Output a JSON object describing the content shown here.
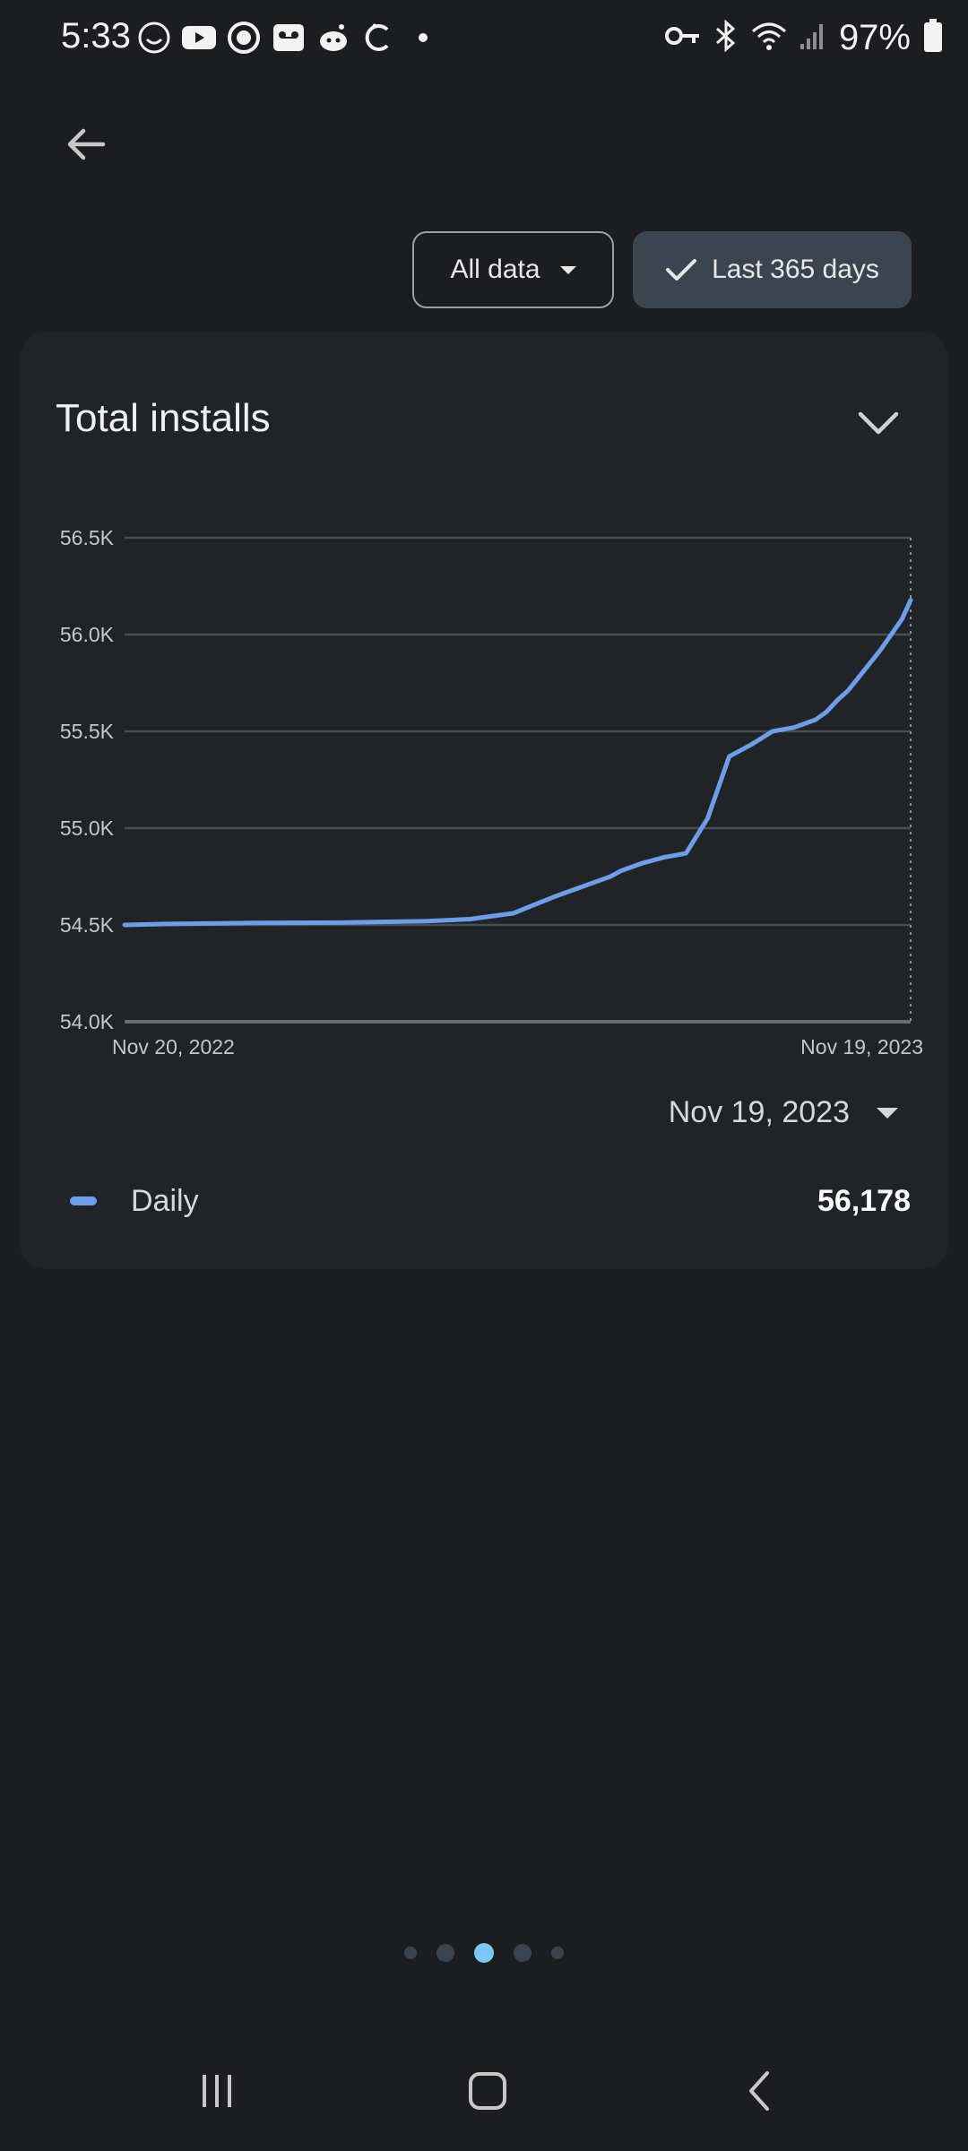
{
  "status_bar": {
    "time": "5:33",
    "battery": "97%",
    "left_icons": [
      "app-icon",
      "youtube-icon",
      "circle-app-icon",
      "voicemail-icon",
      "reddit-icon",
      "app-icon-2",
      "dot-icon"
    ],
    "right_icons": [
      "vpn-key-icon",
      "bluetooth-icon",
      "wifi-icon",
      "signal-icon",
      "battery-icon"
    ]
  },
  "filters": {
    "scope_label": "All data",
    "range_label": "Last 365 days"
  },
  "card": {
    "title": "Total installs",
    "selected_date": "Nov 19, 2023",
    "legend": {
      "label": "Daily",
      "value": "56,178",
      "color": "#6d9eeb"
    }
  },
  "chart_data": {
    "type": "line",
    "title": "Total installs",
    "x_start_label": "Nov 20, 2022",
    "x_end_label": "Nov 19, 2023",
    "xlabel": "",
    "ylabel": "",
    "ylim": [
      54000,
      56500
    ],
    "yticks": [
      "54.0K",
      "54.5K",
      "55.0K",
      "55.5K",
      "56.0K",
      "56.5K"
    ],
    "ytick_values": [
      54000,
      54500,
      55000,
      55500,
      56000,
      56500
    ],
    "grid": true,
    "series": [
      {
        "name": "Daily",
        "color": "#6d9eeb",
        "x_days": [
          0,
          20,
          60,
          100,
          140,
          160,
          180,
          200,
          210,
          215,
          220,
          225,
          230,
          240,
          250,
          260,
          270,
          280,
          290,
          300,
          305,
          310,
          315,
          320,
          325,
          330,
          335,
          340,
          345,
          350,
          355,
          360,
          364
        ],
        "values": [
          54500,
          54505,
          54510,
          54512,
          54520,
          54530,
          54560,
          54650,
          54690,
          54710,
          54730,
          54750,
          54780,
          54820,
          54850,
          54870,
          55050,
          55370,
          55430,
          55500,
          55510,
          55520,
          55540,
          55560,
          55600,
          55660,
          55710,
          55780,
          55850,
          55920,
          56000,
          56080,
          56178
        ]
      }
    ]
  },
  "pager": {
    "count": 5,
    "active": 2
  },
  "nav": {
    "recents": "recents",
    "home": "home",
    "back": "back"
  }
}
